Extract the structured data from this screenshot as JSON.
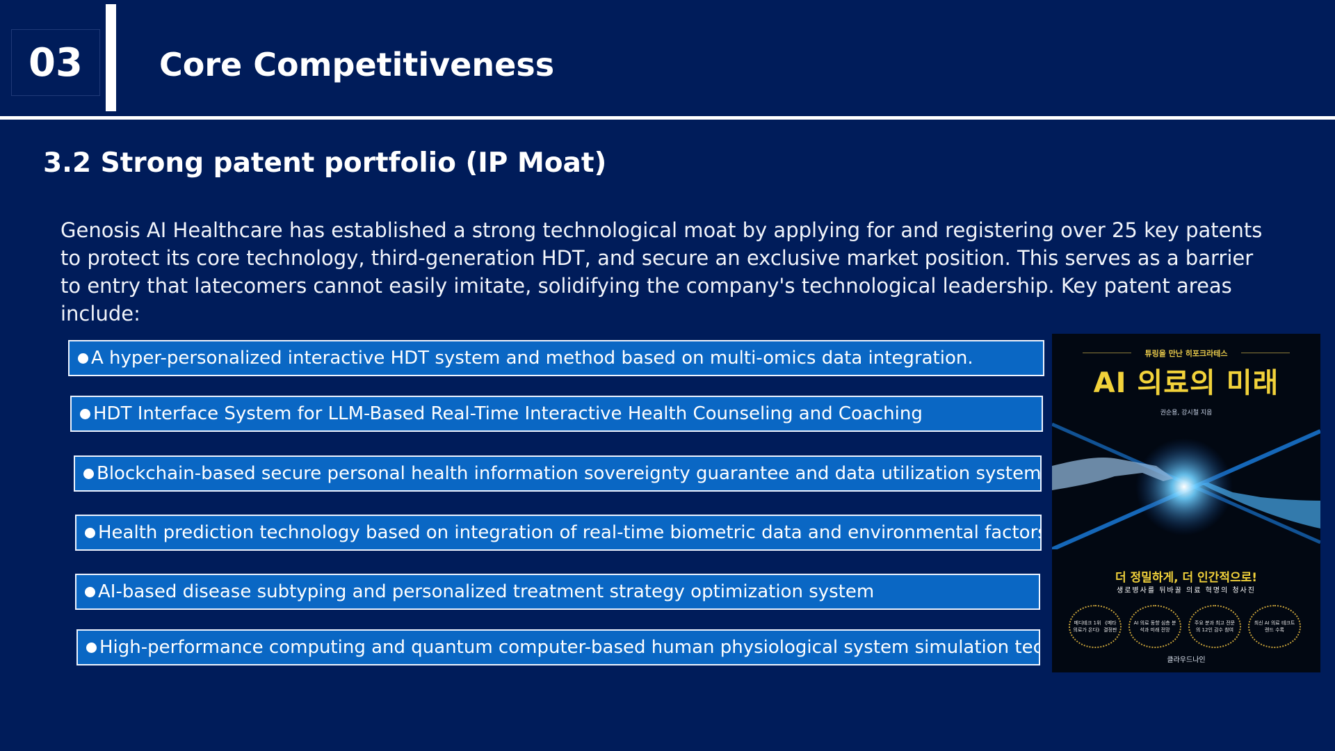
{
  "section": {
    "number": "03",
    "title": "Core Competitiveness"
  },
  "subtitle": "3.2 Strong patent portfolio (IP Moat)",
  "intro": "Genosis AI Healthcare has established a strong technological moat by applying for and registering over 25 key patents to protect its core technology, third-generation HDT, and secure an exclusive market position. This serves as a barrier to entry that latecomers cannot easily imitate, solidifying the company's technological leadership. Key patent areas include:",
  "patents": [
    "A hyper-personalized interactive HDT system and method based on multi-omics data integration.",
    "HDT Interface System for LLM-Based Real-Time Interactive Health Counseling and Coaching",
    "Blockchain-based secure personal health information sovereignty guarantee and data utilization system",
    "Health prediction technology based on integration of real-time biometric data and environmental factors",
    "AI-based disease subtyping and personalized treatment strategy optimization system",
    "High-performance computing and quantum computer-based human physiological system simulation technology"
  ],
  "book": {
    "tagline": "튜링을 만난 히포크라테스",
    "title": "AI 의료의 미래",
    "authors": "권순용, 강시철 지음",
    "slogan": "더 정밀하게, 더 인간적으로!",
    "subtitle": "생로병사를 뒤바꿀 의료 혁명의 청사진",
    "badges": [
      "메디테크 1위 《메타의료가 온다》 결정판",
      "AI 의료 동향 심층 분석과 미래 전망",
      "주요 분과 최고 전문의 12인 감수 참여",
      "최신 AI 의료 테크트렌드 수록"
    ],
    "publisher": "클라우드나인"
  },
  "colors": {
    "background": "#001c5a",
    "item_fill": "#0a67c4",
    "item_border": "#eef4ff",
    "book_accent": "#f2d23a"
  }
}
